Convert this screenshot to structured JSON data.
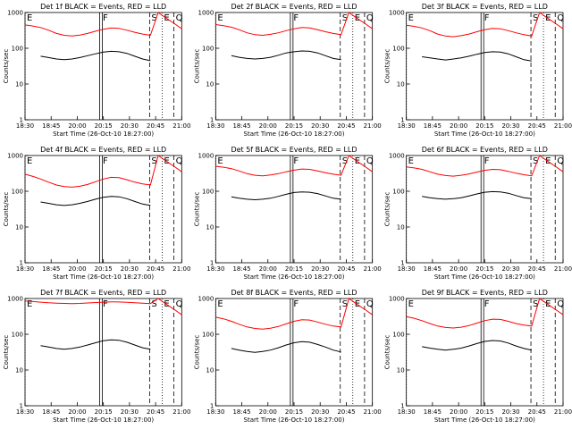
{
  "chart_data": {
    "type": "line",
    "shared": {
      "x_ticks": [
        "18:30",
        "18:45",
        "20:00",
        "20:15",
        "20:30",
        "20:45",
        "21:00"
      ],
      "y_ticks": [
        "1",
        "10",
        "100",
        "1000"
      ],
      "y_scale": "log",
      "ylim": [
        1,
        1000
      ],
      "ylabel": "Counts/sec",
      "xlabel": "Start Time (26-Oct-10 18:27:00)",
      "series_colors": {
        "events": "#000000",
        "lld": "#ff0000"
      }
    },
    "panels": [
      {
        "title": "Det 1f BLACK = Events, RED = LLD",
        "x": [
          0,
          0.05,
          0.1,
          0.15,
          0.2,
          0.25,
          0.3,
          0.35,
          0.4,
          0.45,
          0.5,
          0.55,
          0.6,
          0.65,
          0.7,
          0.75,
          0.8,
          0.85,
          0.9,
          0.95,
          1.0
        ],
        "markers": [
          "E",
          "F",
          "S",
          "E",
          "Q"
        ],
        "series": [
          {
            "key": "events",
            "values": [
              null,
              null,
              60,
              55,
              50,
              48,
              50,
              55,
              62,
              70,
              78,
              82,
              80,
              72,
              60,
              50,
              45,
              null,
              null,
              null,
              null
            ]
          },
          {
            "key": "lld",
            "values": [
              450,
              420,
              380,
              320,
              260,
              230,
              220,
              235,
              260,
              300,
              340,
              370,
              360,
              320,
              280,
              250,
              230,
              1000,
              700,
              500,
              350
            ]
          }
        ]
      },
      {
        "title": "Det 2f BLACK = Events, RED = LLD",
        "x": [
          0,
          0.05,
          0.1,
          0.15,
          0.2,
          0.25,
          0.3,
          0.35,
          0.4,
          0.45,
          0.5,
          0.55,
          0.6,
          0.65,
          0.7,
          0.75,
          0.8,
          0.85,
          0.9,
          0.95,
          1.0
        ],
        "markers": [
          "E",
          "F",
          "S",
          "E",
          "Q"
        ],
        "series": [
          {
            "key": "events",
            "values": [
              null,
              null,
              62,
              56,
              52,
              50,
              52,
              56,
              64,
              74,
              80,
              84,
              82,
              74,
              62,
              52,
              48,
              null,
              null,
              null,
              null
            ]
          },
          {
            "key": "lld",
            "values": [
              460,
              430,
              390,
              330,
              270,
              240,
              230,
              245,
              270,
              310,
              350,
              380,
              370,
              330,
              290,
              260,
              240,
              1000,
              700,
              500,
              350
            ]
          }
        ]
      },
      {
        "title": "Det 3f BLACK = Events, RED = LLD",
        "x": [
          0,
          0.05,
          0.1,
          0.15,
          0.2,
          0.25,
          0.3,
          0.35,
          0.4,
          0.45,
          0.5,
          0.55,
          0.6,
          0.65,
          0.7,
          0.75,
          0.8,
          0.85,
          0.9,
          0.95,
          1.0
        ],
        "markers": [
          "E",
          "F",
          "S",
          "E",
          "Q"
        ],
        "series": [
          {
            "key": "events",
            "values": [
              null,
              null,
              58,
              54,
              50,
              47,
              50,
              54,
              60,
              68,
              76,
              80,
              78,
              70,
              58,
              48,
              44,
              null,
              null,
              null,
              null
            ]
          },
          {
            "key": "lld",
            "values": [
              440,
              410,
              370,
              310,
              250,
              220,
              210,
              225,
              250,
              290,
              330,
              360,
              350,
              310,
              270,
              240,
              220,
              1000,
              700,
              500,
              350
            ]
          }
        ]
      },
      {
        "title": "Det 4f BLACK = Events, RED = LLD",
        "x": [
          0,
          0.05,
          0.1,
          0.15,
          0.2,
          0.25,
          0.3,
          0.35,
          0.4,
          0.45,
          0.5,
          0.55,
          0.6,
          0.65,
          0.7,
          0.75,
          0.8,
          0.85,
          0.9,
          0.95,
          1.0
        ],
        "markers": [
          "E",
          "F",
          "S",
          "E",
          "Q"
        ],
        "series": [
          {
            "key": "events",
            "values": [
              null,
              null,
              50,
              46,
              42,
              40,
              42,
              46,
              52,
              60,
              68,
              72,
              70,
              62,
              52,
              44,
              40,
              null,
              null,
              null,
              null
            ]
          },
          {
            "key": "lld",
            "values": [
              300,
              260,
              220,
              180,
              150,
              135,
              130,
              138,
              155,
              185,
              220,
              245,
              240,
              210,
              180,
              160,
              150,
              1000,
              700,
              500,
              350
            ]
          }
        ]
      },
      {
        "title": "Det 5f BLACK = Events, RED = LLD",
        "x": [
          0,
          0.05,
          0.1,
          0.15,
          0.2,
          0.25,
          0.3,
          0.35,
          0.4,
          0.45,
          0.5,
          0.55,
          0.6,
          0.65,
          0.7,
          0.75,
          0.8,
          0.85,
          0.9,
          0.95,
          1.0
        ],
        "markers": [
          "E",
          "F",
          "S",
          "E",
          "Q"
        ],
        "series": [
          {
            "key": "events",
            "values": [
              null,
              null,
              70,
              64,
              60,
              58,
              60,
              64,
              72,
              82,
              92,
              96,
              94,
              86,
              74,
              64,
              60,
              null,
              null,
              null,
              null
            ]
          },
          {
            "key": "lld",
            "values": [
              500,
              470,
              430,
              370,
              310,
              280,
              270,
              285,
              310,
              350,
              390,
              420,
              410,
              370,
              330,
              300,
              280,
              1000,
              700,
              500,
              350
            ]
          }
        ]
      },
      {
        "title": "Det 6f BLACK = Events, RED = LLD",
        "x": [
          0,
          0.05,
          0.1,
          0.15,
          0.2,
          0.25,
          0.3,
          0.35,
          0.4,
          0.45,
          0.5,
          0.55,
          0.6,
          0.65,
          0.7,
          0.75,
          0.8,
          0.85,
          0.9,
          0.95,
          1.0
        ],
        "markers": [
          "E",
          "F",
          "S",
          "E",
          "Q"
        ],
        "series": [
          {
            "key": "events",
            "values": [
              null,
              null,
              72,
              66,
              62,
              60,
              62,
              66,
              74,
              84,
              94,
              98,
              96,
              88,
              76,
              66,
              62,
              null,
              null,
              null,
              null
            ]
          },
          {
            "key": "lld",
            "values": [
              480,
              450,
              410,
              350,
              300,
              275,
              265,
              280,
              305,
              345,
              385,
              410,
              400,
              360,
              320,
              290,
              270,
              1000,
              700,
              500,
              350
            ]
          }
        ]
      },
      {
        "title": "Det 7f BLACK = Events, RED = LLD",
        "x": [
          0,
          0.05,
          0.1,
          0.15,
          0.2,
          0.25,
          0.3,
          0.35,
          0.4,
          0.45,
          0.5,
          0.55,
          0.6,
          0.65,
          0.7,
          0.75,
          0.8,
          0.85,
          0.9,
          0.95,
          1.0
        ],
        "markers": [
          "E",
          "F",
          "S",
          "E",
          "Q"
        ],
        "series": [
          {
            "key": "events",
            "values": [
              null,
              null,
              48,
              44,
              40,
              38,
              40,
              44,
              50,
              58,
              66,
              70,
              68,
              60,
              50,
              42,
              38,
              null,
              null,
              null,
              null
            ]
          },
          {
            "key": "lld",
            "values": [
              850,
              820,
              790,
              760,
              740,
              730,
              720,
              730,
              750,
              770,
              790,
              810,
              800,
              780,
              760,
              740,
              720,
              1000,
              700,
              500,
              350
            ]
          }
        ]
      },
      {
        "title": "Det 8f BLACK = Events, RED = LLD",
        "x": [
          0,
          0.05,
          0.1,
          0.15,
          0.2,
          0.25,
          0.3,
          0.35,
          0.4,
          0.45,
          0.5,
          0.55,
          0.6,
          0.65,
          0.7,
          0.75,
          0.8,
          0.85,
          0.9,
          0.95,
          1.0
        ],
        "markers": [
          "E",
          "F",
          "S",
          "E",
          "Q"
        ],
        "series": [
          {
            "key": "events",
            "values": [
              null,
              null,
              40,
              36,
              33,
              31,
              33,
              36,
              42,
              50,
              58,
              62,
              60,
              52,
              44,
              36,
              32,
              null,
              null,
              null,
              null
            ]
          },
          {
            "key": "lld",
            "values": [
              300,
              270,
              230,
              190,
              160,
              145,
              140,
              148,
              165,
              195,
              230,
              255,
              250,
              220,
              190,
              170,
              160,
              1000,
              700,
              500,
              350
            ]
          }
        ]
      },
      {
        "title": "Det 9f BLACK = Events, RED = LLD",
        "x": [
          0,
          0.05,
          0.1,
          0.15,
          0.2,
          0.25,
          0.3,
          0.35,
          0.4,
          0.45,
          0.5,
          0.55,
          0.6,
          0.65,
          0.7,
          0.75,
          0.8,
          0.85,
          0.9,
          0.95,
          1.0
        ],
        "markers": [
          "E",
          "F",
          "S",
          "E",
          "Q"
        ],
        "series": [
          {
            "key": "events",
            "values": [
              null,
              null,
              45,
              41,
              38,
              36,
              38,
              41,
              47,
              55,
              63,
              67,
              65,
              57,
              47,
              40,
              36,
              null,
              null,
              null,
              null
            ]
          },
          {
            "key": "lld",
            "values": [
              310,
              280,
              240,
              200,
              170,
              155,
              150,
              158,
              175,
              205,
              240,
              265,
              260,
              230,
              200,
              180,
              170,
              1000,
              700,
              500,
              350
            ]
          }
        ]
      }
    ]
  }
}
